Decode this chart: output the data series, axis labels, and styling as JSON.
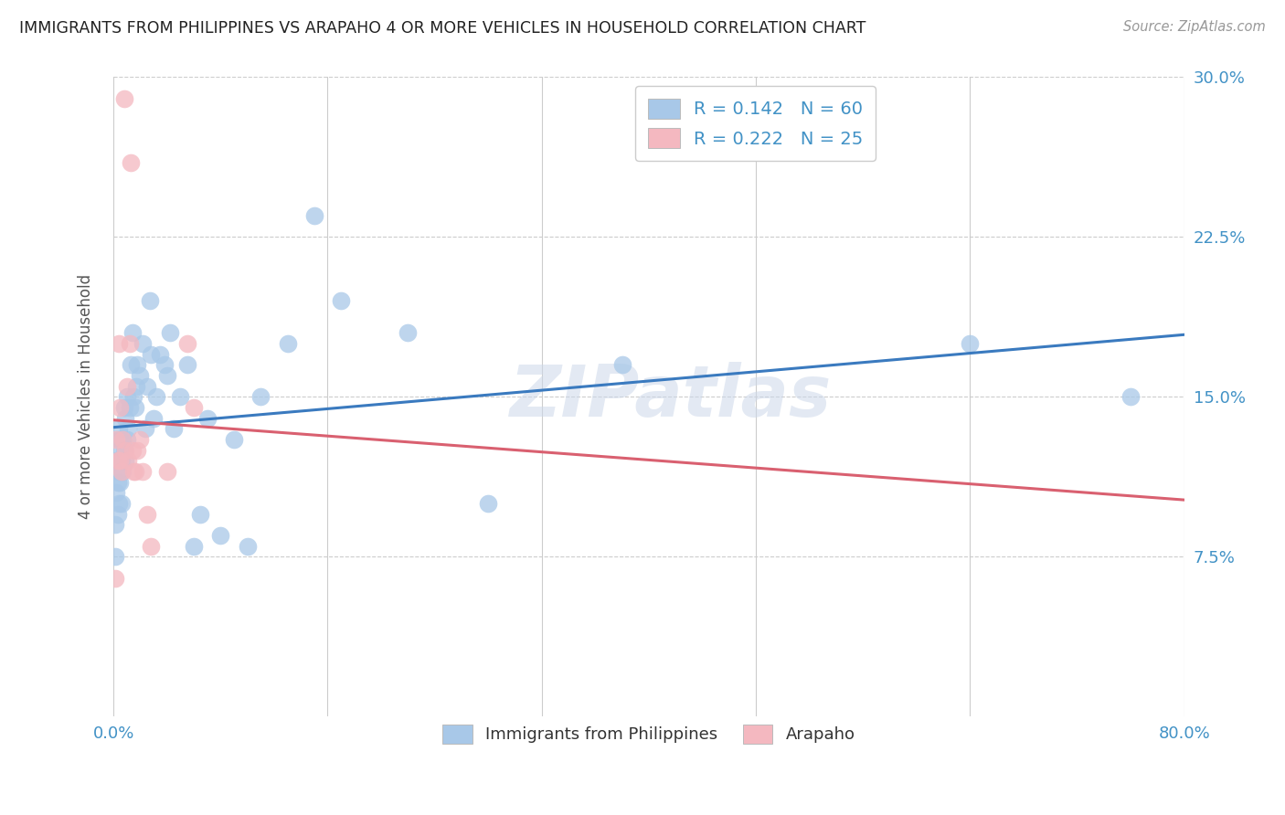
{
  "title": "IMMIGRANTS FROM PHILIPPINES VS ARAPAHO 4 OR MORE VEHICLES IN HOUSEHOLD CORRELATION CHART",
  "source": "Source: ZipAtlas.com",
  "ylabel": "4 or more Vehicles in Household",
  "watermark": "ZIPatlas",
  "xlim": [
    0.0,
    0.8
  ],
  "ylim": [
    0.0,
    0.3
  ],
  "xticks": [
    0.0,
    0.16,
    0.32,
    0.48,
    0.64,
    0.8
  ],
  "yticks": [
    0.0,
    0.075,
    0.15,
    0.225,
    0.3
  ],
  "tick_color": "#4292c6",
  "blue_color": "#a8c8e8",
  "pink_color": "#f4b8c0",
  "blue_line_color": "#3a7abf",
  "pink_line_color": "#d96070",
  "legend_blue_label": "R = 0.142   N = 60",
  "legend_pink_label": "R = 0.222   N = 25",
  "legend_bottom_blue": "Immigrants from Philippines",
  "legend_bottom_pink": "Arapaho",
  "blue_scatter_x": [
    0.001,
    0.001,
    0.002,
    0.002,
    0.003,
    0.003,
    0.003,
    0.004,
    0.004,
    0.004,
    0.005,
    0.005,
    0.006,
    0.006,
    0.007,
    0.007,
    0.008,
    0.008,
    0.009,
    0.009,
    0.01,
    0.01,
    0.011,
    0.012,
    0.013,
    0.014,
    0.015,
    0.016,
    0.017,
    0.018,
    0.02,
    0.022,
    0.024,
    0.025,
    0.027,
    0.028,
    0.03,
    0.032,
    0.035,
    0.038,
    0.04,
    0.042,
    0.045,
    0.05,
    0.055,
    0.06,
    0.065,
    0.07,
    0.08,
    0.09,
    0.1,
    0.11,
    0.13,
    0.15,
    0.17,
    0.22,
    0.28,
    0.38,
    0.64,
    0.76
  ],
  "blue_scatter_y": [
    0.075,
    0.09,
    0.105,
    0.12,
    0.095,
    0.11,
    0.125,
    0.1,
    0.115,
    0.135,
    0.11,
    0.13,
    0.1,
    0.12,
    0.115,
    0.13,
    0.125,
    0.145,
    0.12,
    0.14,
    0.13,
    0.15,
    0.135,
    0.145,
    0.165,
    0.18,
    0.15,
    0.145,
    0.155,
    0.165,
    0.16,
    0.175,
    0.135,
    0.155,
    0.195,
    0.17,
    0.14,
    0.15,
    0.17,
    0.165,
    0.16,
    0.18,
    0.135,
    0.15,
    0.165,
    0.08,
    0.095,
    0.14,
    0.085,
    0.13,
    0.08,
    0.15,
    0.175,
    0.235,
    0.195,
    0.18,
    0.1,
    0.165,
    0.175,
    0.15
  ],
  "pink_scatter_x": [
    0.001,
    0.002,
    0.003,
    0.004,
    0.005,
    0.005,
    0.006,
    0.007,
    0.008,
    0.009,
    0.01,
    0.011,
    0.012,
    0.013,
    0.014,
    0.015,
    0.016,
    0.018,
    0.02,
    0.022,
    0.025,
    0.028,
    0.04,
    0.055,
    0.06
  ],
  "pink_scatter_y": [
    0.065,
    0.13,
    0.12,
    0.175,
    0.145,
    0.12,
    0.115,
    0.13,
    0.29,
    0.125,
    0.155,
    0.12,
    0.175,
    0.26,
    0.125,
    0.115,
    0.115,
    0.125,
    0.13,
    0.115,
    0.095,
    0.08,
    0.115,
    0.175,
    0.145
  ]
}
